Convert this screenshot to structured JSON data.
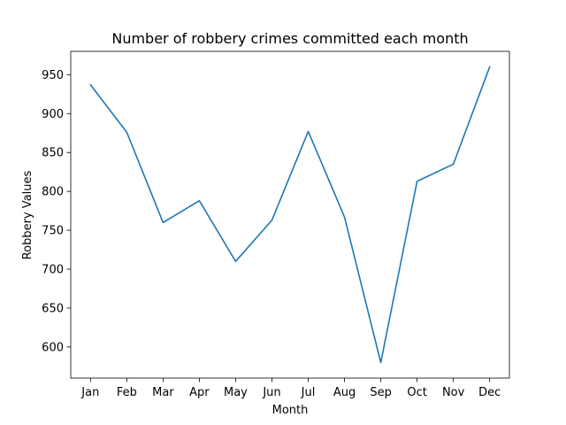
{
  "chart_data": {
    "type": "line",
    "title": "Number of robbery crimes committed each month",
    "xlabel": "Month",
    "ylabel": "Robbery Values",
    "categories": [
      "Jan",
      "Feb",
      "Mar",
      "Apr",
      "May",
      "Jun",
      "Jul",
      "Aug",
      "Sep",
      "Oct",
      "Nov",
      "Dec"
    ],
    "series": [
      {
        "values": [
          937,
          876,
          760,
          788,
          710,
          763,
          877,
          767,
          580,
          813,
          835,
          960
        ],
        "color": "#1f77b4"
      }
    ],
    "ylim": [
      560,
      980
    ],
    "yticks": [
      600,
      650,
      700,
      750,
      800,
      850,
      900,
      950
    ],
    "grid": false,
    "legend": "none"
  }
}
